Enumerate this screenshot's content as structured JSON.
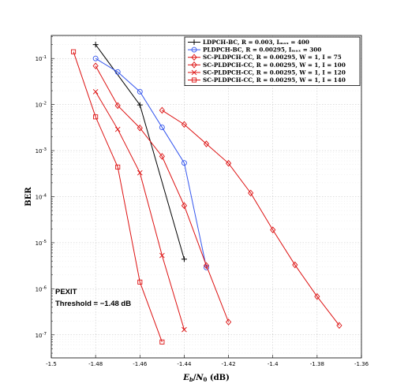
{
  "chart_data": {
    "type": "line",
    "xlabel": "E_b/N_0 (dB)",
    "ylabel": "BER",
    "xlim": [
      -1.5,
      -1.36
    ],
    "ylim_log10": [
      -7.5,
      -0.5
    ],
    "y_scale": "log",
    "grid": true,
    "legend_position": "top-right",
    "x_ticks": [
      "-1.5",
      "-1.48",
      "-1.46",
      "-1.44",
      "-1.42",
      "-1.4",
      "-1.38",
      "-1.36"
    ],
    "y_ticks": [
      {
        "base": "10",
        "exp": "-1"
      },
      {
        "base": "10",
        "exp": "-2"
      },
      {
        "base": "10",
        "exp": "-3"
      },
      {
        "base": "10",
        "exp": "-4"
      },
      {
        "base": "10",
        "exp": "-5"
      },
      {
        "base": "10",
        "exp": "-6"
      },
      {
        "base": "10",
        "exp": "-7"
      }
    ],
    "annotation": [
      "PEXIT",
      "Threshold = −1.48 dB"
    ],
    "series": [
      {
        "name": "LDPCH-BC, R = 0.003, I_max = 400",
        "color": "#000000",
        "marker": "plus",
        "x": [
          -1.48,
          -1.46,
          -1.44
        ],
        "y": [
          0.2,
          0.0098,
          4.4e-06
        ]
      },
      {
        "name": "PLDPCH-BC, R = 0.00295, I_max = 300",
        "color": "#3355ee",
        "marker": "circle",
        "x": [
          -1.48,
          -1.47,
          -1.46,
          -1.45,
          -1.44,
          -1.43
        ],
        "y": [
          0.1,
          0.051,
          0.019,
          0.0032,
          0.00054,
          2.9e-06
        ]
      },
      {
        "name": "SC-PLDPCH-CC, R = 0.00295, W = 1, I = 75",
        "color": "#dd1111",
        "marker": "diamond",
        "x": [
          -1.45,
          -1.44,
          -1.43,
          -1.42,
          -1.41,
          -1.4,
          -1.39,
          -1.38,
          -1.37
        ],
        "y": [
          0.0075,
          0.0037,
          0.0014,
          0.00053,
          0.00012,
          1.9e-05,
          3.3e-06,
          6.8e-07,
          1.6e-07
        ]
      },
      {
        "name": "SC-PLDPCH-CC, R = 0.00295, W = 1, I = 100",
        "color": "#dd1111",
        "marker": "diamond",
        "x": [
          -1.48,
          -1.47,
          -1.46,
          -1.45,
          -1.44,
          -1.43,
          -1.42
        ],
        "y": [
          0.069,
          0.0095,
          0.0031,
          0.00075,
          6.4e-05,
          3.2e-06,
          1.9e-07
        ]
      },
      {
        "name": "SC-PLDPCH-CC, R = 0.00295, W = 1, I = 120",
        "color": "#dd1111",
        "marker": "cross",
        "x": [
          -1.48,
          -1.47,
          -1.46,
          -1.45,
          -1.44
        ],
        "y": [
          0.019,
          0.0029,
          0.00033,
          5.3e-06,
          1.3e-07
        ]
      },
      {
        "name": "SC-PLDPCH-CC, R = 0.00295, W = 1, I = 140",
        "color": "#dd1111",
        "marker": "square",
        "x": [
          -1.49,
          -1.48,
          -1.47,
          -1.46,
          -1.45
        ],
        "y": [
          0.14,
          0.0054,
          0.00044,
          1.4e-06,
          7e-08
        ]
      }
    ]
  }
}
